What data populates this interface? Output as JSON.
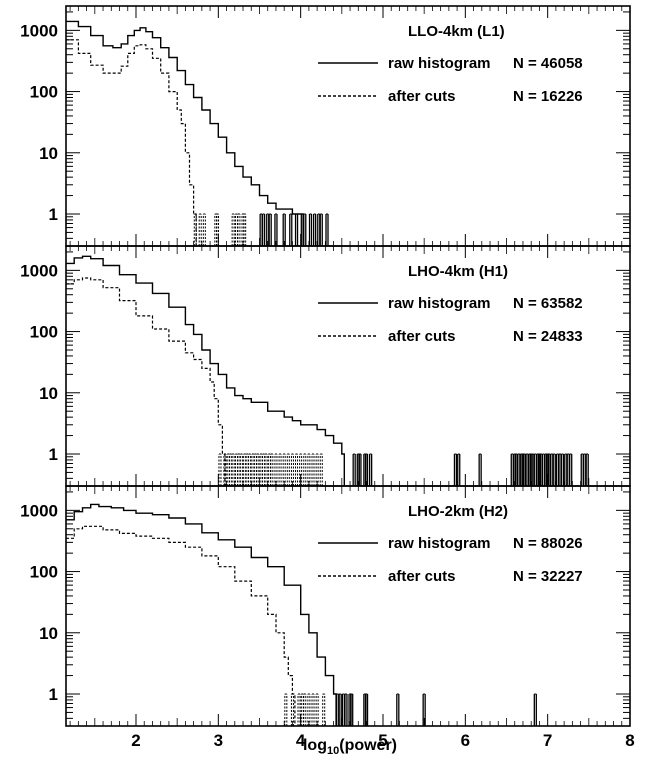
{
  "figure": {
    "xlabel": "log10(power)",
    "xlabel_base": "log",
    "xlabel_sub": "10",
    "xlabel_rest": "(power)",
    "x_ticks": [
      2,
      3,
      4,
      5,
      6,
      7,
      8
    ],
    "y_ticks": [
      1,
      10,
      100,
      1000
    ]
  },
  "legend": {
    "raw_label": "raw histogram",
    "cuts_label": "after cuts"
  },
  "chart_data": [
    {
      "type": "line",
      "title": "LLO-4km (L1)",
      "xlim": [
        1.15,
        8
      ],
      "ylim": [
        0.3,
        2500
      ],
      "ylog": true,
      "series": [
        {
          "name": "raw histogram",
          "count_label": "N =  46058",
          "style": "solid",
          "points": [
            [
              1.15,
              1400
            ],
            [
              1.3,
              1150
            ],
            [
              1.45,
              820
            ],
            [
              1.6,
              560
            ],
            [
              1.72,
              520
            ],
            [
              1.82,
              600
            ],
            [
              1.9,
              820
            ],
            [
              1.98,
              1000
            ],
            [
              2.05,
              1100
            ],
            [
              2.12,
              950
            ],
            [
              2.2,
              760
            ],
            [
              2.3,
              520
            ],
            [
              2.4,
              360
            ],
            [
              2.5,
              220
            ],
            [
              2.6,
              130
            ],
            [
              2.7,
              80
            ],
            [
              2.8,
              50
            ],
            [
              2.9,
              30
            ],
            [
              3.0,
              18
            ],
            [
              3.1,
              10
            ],
            [
              3.2,
              6
            ],
            [
              3.3,
              4
            ],
            [
              3.4,
              3
            ],
            [
              3.5,
              2
            ],
            [
              3.6,
              1.5
            ],
            [
              3.7,
              1.2
            ],
            [
              3.8,
              1.2
            ],
            [
              3.9,
              1
            ],
            [
              4.0,
              1
            ]
          ],
          "spikes": [
            3.52,
            3.55,
            3.6,
            3.63,
            3.7,
            3.8,
            3.88,
            3.95,
            4.02,
            4.05,
            4.12,
            4.17,
            4.22,
            4.25,
            4.32
          ]
        },
        {
          "name": "after cuts",
          "count_label": "N =  16226",
          "style": "dashed",
          "points": [
            [
              1.15,
              700
            ],
            [
              1.3,
              420
            ],
            [
              1.45,
              270
            ],
            [
              1.6,
              200
            ],
            [
              1.72,
              200
            ],
            [
              1.82,
              260
            ],
            [
              1.9,
              420
            ],
            [
              1.98,
              560
            ],
            [
              2.05,
              580
            ],
            [
              2.12,
              500
            ],
            [
              2.2,
              350
            ],
            [
              2.3,
              200
            ],
            [
              2.4,
              100
            ],
            [
              2.5,
              50
            ],
            [
              2.55,
              30
            ],
            [
              2.6,
              10
            ],
            [
              2.65,
              3
            ],
            [
              2.7,
              1
            ]
          ],
          "spikes": [
            2.72,
            2.78,
            2.83,
            2.97,
            2.99,
            3.18,
            3.22,
            3.25,
            3.3,
            3.32
          ]
        }
      ]
    },
    {
      "type": "line",
      "title": "LHO-4km (H1)",
      "xlim": [
        1.15,
        8
      ],
      "ylim": [
        0.3,
        2500
      ],
      "ylog": true,
      "series": [
        {
          "name": "raw histogram",
          "count_label": "N =  63582",
          "style": "solid",
          "points": [
            [
              1.15,
              1300
            ],
            [
              1.25,
              1600
            ],
            [
              1.35,
              1700
            ],
            [
              1.45,
              1550
            ],
            [
              1.6,
              1200
            ],
            [
              1.8,
              850
            ],
            [
              2.0,
              620
            ],
            [
              2.2,
              420
            ],
            [
              2.4,
              250
            ],
            [
              2.6,
              130
            ],
            [
              2.7,
              90
            ],
            [
              2.8,
              50
            ],
            [
              2.9,
              30
            ],
            [
              3.0,
              20
            ],
            [
              3.1,
              12
            ],
            [
              3.2,
              9
            ],
            [
              3.3,
              8
            ],
            [
              3.4,
              7
            ],
            [
              3.5,
              7
            ],
            [
              3.6,
              5
            ],
            [
              3.7,
              5
            ],
            [
              3.8,
              4
            ],
            [
              3.9,
              3.5
            ],
            [
              4.0,
              3
            ],
            [
              4.1,
              3
            ],
            [
              4.2,
              2.5
            ],
            [
              4.3,
              2
            ],
            [
              4.4,
              1.5
            ],
            [
              4.5,
              1
            ]
          ],
          "spikes": [
            4.65,
            4.7,
            4.72,
            4.78,
            4.8,
            4.85,
            5.88,
            5.92,
            6.18,
            6.57,
            6.6,
            6.62,
            6.65,
            6.68,
            6.7,
            6.72,
            6.75,
            6.78,
            6.8,
            6.82,
            6.85,
            6.88,
            6.9,
            6.92,
            6.95,
            6.98,
            7.0,
            7.02,
            7.05,
            7.08,
            7.12,
            7.15,
            7.18,
            7.22,
            7.25,
            7.28,
            7.42,
            7.45,
            7.48
          ]
        },
        {
          "name": "after cuts",
          "count_label": "N =  24833",
          "style": "dashed",
          "points": [
            [
              1.15,
              600
            ],
            [
              1.25,
              700
            ],
            [
              1.35,
              750
            ],
            [
              1.45,
              700
            ],
            [
              1.6,
              520
            ],
            [
              1.8,
              320
            ],
            [
              2.0,
              180
            ],
            [
              2.2,
              110
            ],
            [
              2.4,
              70
            ],
            [
              2.6,
              45
            ],
            [
              2.7,
              35
            ],
            [
              2.8,
              25
            ],
            [
              2.9,
              15
            ],
            [
              2.95,
              8
            ],
            [
              3.0,
              3
            ],
            [
              3.05,
              1
            ]
          ],
          "spikes": [
            3.02,
            3.08,
            3.12,
            3.15,
            3.18,
            3.22,
            3.25,
            3.28,
            3.32,
            3.35,
            3.38,
            3.42,
            3.45,
            3.48,
            3.52,
            3.55,
            3.58,
            3.62,
            3.65,
            3.7,
            3.75,
            3.8,
            3.85,
            3.9,
            3.95,
            4.0,
            4.05,
            4.1,
            4.15,
            4.2,
            4.25
          ]
        }
      ]
    },
    {
      "type": "line",
      "title": "LHO-2km (H2)",
      "xlim": [
        1.15,
        8
      ],
      "ylim": [
        0.3,
        2500
      ],
      "ylog": true,
      "series": [
        {
          "name": "raw histogram",
          "count_label": "N =  88026",
          "style": "solid",
          "points": [
            [
              1.15,
              700
            ],
            [
              1.25,
              950
            ],
            [
              1.35,
              1100
            ],
            [
              1.45,
              1250
            ],
            [
              1.55,
              1150
            ],
            [
              1.7,
              1100
            ],
            [
              1.85,
              1000
            ],
            [
              2.0,
              900
            ],
            [
              2.2,
              850
            ],
            [
              2.4,
              750
            ],
            [
              2.6,
              600
            ],
            [
              2.8,
              430
            ],
            [
              3.0,
              330
            ],
            [
              3.2,
              250
            ],
            [
              3.4,
              170
            ],
            [
              3.6,
              120
            ],
            [
              3.8,
              60
            ],
            [
              4.0,
              20
            ],
            [
              4.1,
              10
            ],
            [
              4.2,
              4
            ],
            [
              4.3,
              2
            ],
            [
              4.4,
              1
            ]
          ],
          "spikes": [
            4.45,
            4.48,
            4.52,
            4.55,
            4.6,
            4.62,
            4.78,
            4.8,
            5.18,
            5.5,
            6.85
          ]
        },
        {
          "name": "after cuts",
          "count_label": "N =  32227",
          "style": "dashed",
          "points": [
            [
              1.15,
              350
            ],
            [
              1.25,
              500
            ],
            [
              1.35,
              550
            ],
            [
              1.45,
              550
            ],
            [
              1.6,
              480
            ],
            [
              1.8,
              420
            ],
            [
              2.0,
              380
            ],
            [
              2.2,
              350
            ],
            [
              2.4,
              300
            ],
            [
              2.6,
              250
            ],
            [
              2.8,
              180
            ],
            [
              3.0,
              120
            ],
            [
              3.2,
              70
            ],
            [
              3.4,
              40
            ],
            [
              3.6,
              20
            ],
            [
              3.7,
              10
            ],
            [
              3.8,
              4
            ],
            [
              3.85,
              2
            ],
            [
              3.9,
              1
            ]
          ],
          "spikes": [
            3.82,
            3.9,
            3.98,
            4.02,
            4.05,
            4.1,
            4.15,
            4.2,
            4.28
          ]
        }
      ]
    }
  ]
}
